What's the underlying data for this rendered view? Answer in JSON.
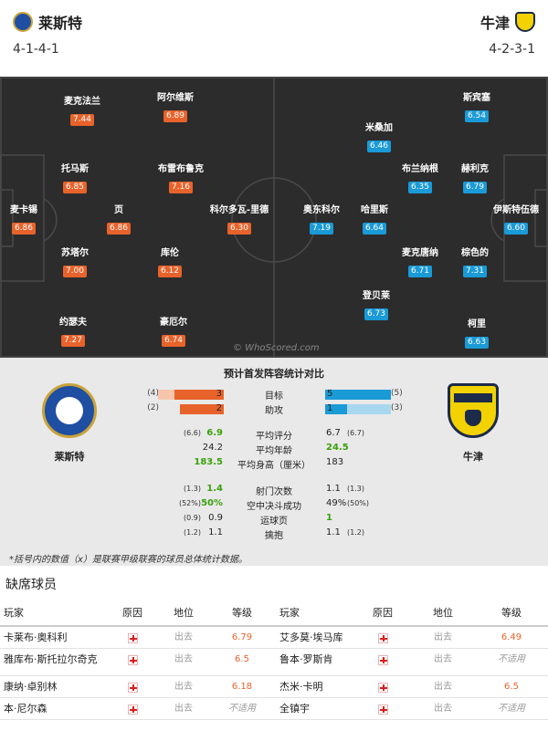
{
  "header": {
    "home_name": "莱斯特",
    "away_name": "牛津",
    "home_formation": "4-1-4-1",
    "away_formation": "4-2-3-1"
  },
  "pitch": {
    "watermark": "© WhoScored.com",
    "home_players": [
      {
        "name": "麦克法兰",
        "rating": "7.44"
      },
      {
        "name": "阿尔维斯",
        "rating": "6.89"
      },
      {
        "name": "托马斯",
        "rating": "6.85"
      },
      {
        "name": "布雷布鲁克",
        "rating": "7.16"
      },
      {
        "name": "麦卡锡",
        "rating": "6.86"
      },
      {
        "name": "页",
        "rating": "6.86"
      },
      {
        "name": "科尔多瓦-里德",
        "rating": "6.30"
      },
      {
        "name": "苏塔尔",
        "rating": "7.00"
      },
      {
        "name": "库伦",
        "rating": "6.12"
      },
      {
        "name": "约瑟夫",
        "rating": "7.27"
      },
      {
        "name": "豪厄尔",
        "rating": "6.74"
      }
    ],
    "away_players": [
      {
        "name": "斯宾塞",
        "rating": "6.54"
      },
      {
        "name": "米桑加",
        "rating": "6.46"
      },
      {
        "name": "布兰纳根",
        "rating": "6.35"
      },
      {
        "name": "赫利克",
        "rating": "6.79"
      },
      {
        "name": "奥东科尔",
        "rating": "7.19"
      },
      {
        "name": "哈里斯",
        "rating": "6.64"
      },
      {
        "name": "伊斯特伍德",
        "rating": "6.60"
      },
      {
        "name": "麦克唐纳",
        "rating": "6.71"
      },
      {
        "name": "棕色的",
        "rating": "7.31"
      },
      {
        "name": "登贝莱",
        "rating": "6.73"
      },
      {
        "name": "柯里",
        "rating": "6.63"
      }
    ]
  },
  "stats": {
    "title": "预计首发阵容统计对比",
    "home_team": "莱斯特",
    "away_team": "牛津",
    "bars": [
      {
        "label": "目标",
        "home": "3",
        "home_avg": "(4)",
        "away": "5",
        "away_avg": "(5)",
        "home_frac": 0.75,
        "home_avg_frac": 1.0,
        "away_frac": 1.0,
        "away_avg_frac": 1.0
      },
      {
        "label": "助攻",
        "home": "2",
        "home_avg": "(2)",
        "away": "1",
        "away_avg": "(3)",
        "home_frac": 0.67,
        "home_avg_frac": 0.67,
        "away_frac": 0.33,
        "away_avg_frac": 1.0
      }
    ],
    "rows1": [
      {
        "label": "平均评分",
        "home_avg": "(6.6)",
        "home": "6.9",
        "home_good": true,
        "away": "6.7",
        "away_good": false,
        "away_avg": "(6.7)"
      },
      {
        "label": "平均年龄",
        "home_avg": "",
        "home": "24.2",
        "home_good": false,
        "away": "24.5",
        "away_good": true,
        "away_avg": ""
      },
      {
        "label": "平均身高（厘米）",
        "home_avg": "",
        "home": "183.5",
        "home_good": true,
        "away": "183",
        "away_good": false,
        "away_avg": ""
      }
    ],
    "rows2": [
      {
        "label": "射门次数",
        "home_avg": "(1.3)",
        "home": "1.4",
        "home_good": true,
        "away": "1.1",
        "away_good": false,
        "away_avg": "(1.3)"
      },
      {
        "label": "空中决斗成功",
        "home_avg": "(52%)",
        "home": "50%",
        "home_good": true,
        "away": "49%",
        "away_good": false,
        "away_avg": "(50%)"
      },
      {
        "label": "运球页",
        "home_avg": "(0.9)",
        "home": "0.9",
        "home_good": false,
        "away": "1",
        "away_good": true,
        "away_avg": ""
      },
      {
        "label": "擒抱",
        "home_avg": "(1.2)",
        "home": "1.1",
        "home_good": false,
        "away": "1.1",
        "away_good": false,
        "away_avg": "(1.2)"
      }
    ],
    "footnote": "*括号内的数值（x）是联赛甲级联赛的球员总体统计数据。"
  },
  "missing": {
    "title": "缺席球员",
    "headers": [
      "玩家",
      "原因",
      "地位",
      "等级",
      "玩家",
      "原因",
      "地位",
      "等级"
    ],
    "rows": [
      {
        "home_player": "卡莱布·奥科利",
        "home_status": "出去",
        "home_rating": "6.79",
        "away_player": "艾多莫·埃马库",
        "away_status": "出去",
        "away_rating": "6.49"
      },
      {
        "home_player": "雅库布·斯托拉尔奇克",
        "home_status": "出去",
        "home_rating": "6.5",
        "away_player": "鲁本·罗斯肯",
        "away_status": "出去",
        "away_rating": "不适用"
      },
      {
        "home_player": "康纳·卓别林",
        "home_status": "出去",
        "home_rating": "6.18",
        "away_player": "杰米·卡明",
        "away_status": "出去",
        "away_rating": "6.5"
      },
      {
        "home_player": "本·尼尔森",
        "home_status": "出去",
        "home_rating": "不适用",
        "away_player": "全镇宇",
        "away_status": "出去",
        "away_rating": "不适用"
      }
    ]
  }
}
